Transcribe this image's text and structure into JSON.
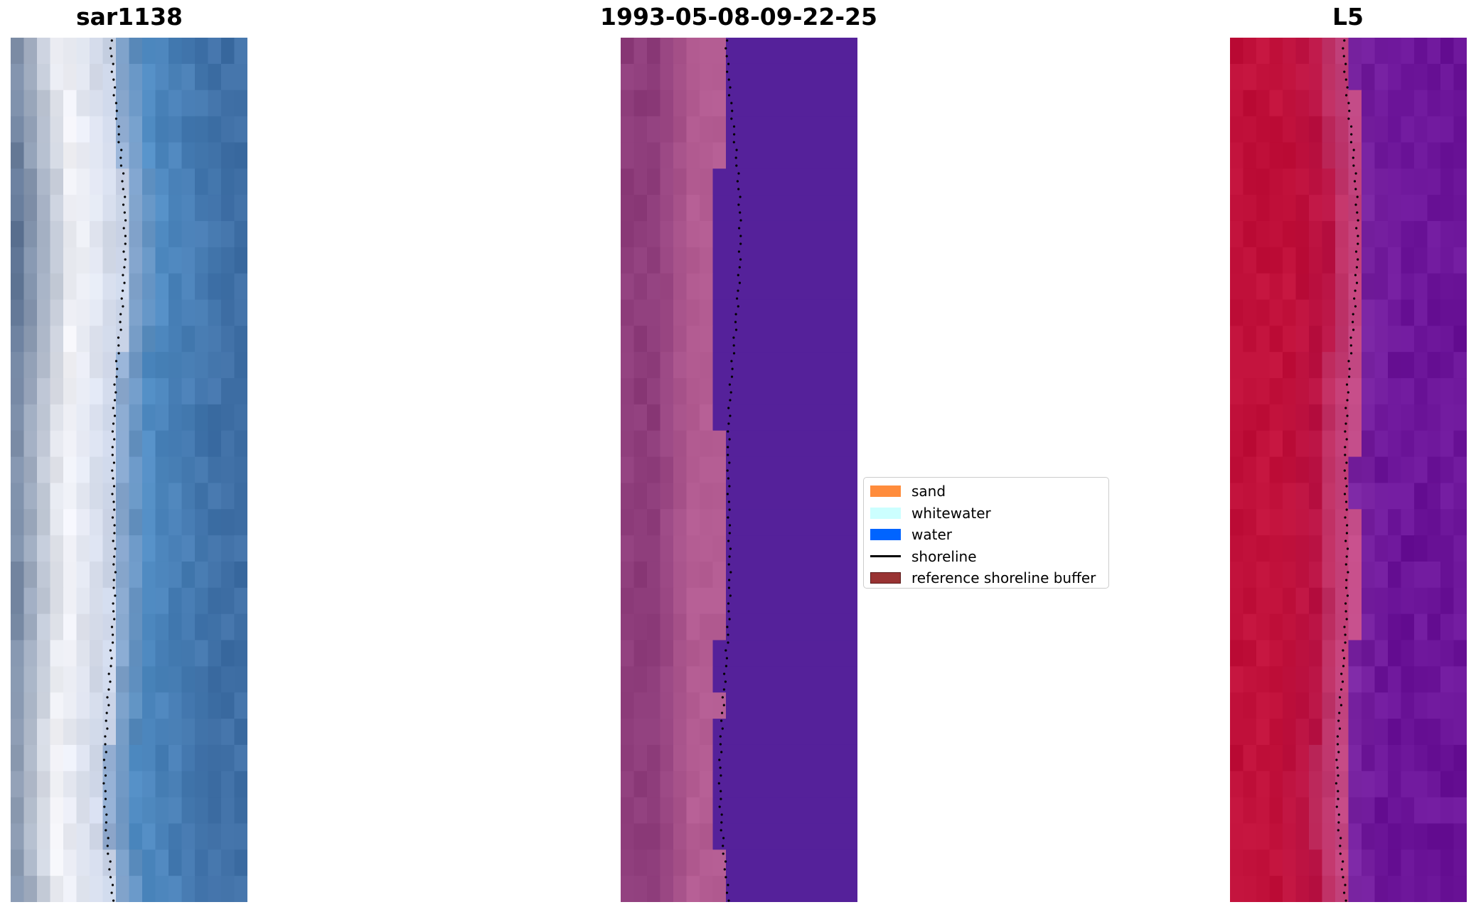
{
  "panels": [
    {
      "title": "sar1138",
      "image": "rgb-satellite-image"
    },
    {
      "title": "1993-05-08-09-22-25",
      "image": "classified-image"
    },
    {
      "title": "L5",
      "image": "index-image"
    }
  ],
  "legend": {
    "location": "center",
    "items": [
      {
        "label": "sand",
        "kind": "patch",
        "color": "#ff8c3c"
      },
      {
        "label": "whitewater",
        "kind": "patch",
        "color": "#ccffff"
      },
      {
        "label": "water",
        "kind": "patch",
        "color": "#0064ff"
      },
      {
        "label": "shoreline",
        "kind": "line",
        "color": "#000000"
      },
      {
        "label": "reference shoreline buffer",
        "kind": "patch",
        "color": "#993333"
      }
    ]
  },
  "colors": {
    "sar_land": "#8e9db4",
    "sar_beach": "#f4f4f8",
    "sar_water": "#3f6fa5",
    "class_land": "#8e3d7b",
    "class_sand": "#b35c92",
    "class_water": "#55219a",
    "index_land": "#c0103a",
    "index_mid": "#c44d8a",
    "index_water": "#6b1498"
  }
}
